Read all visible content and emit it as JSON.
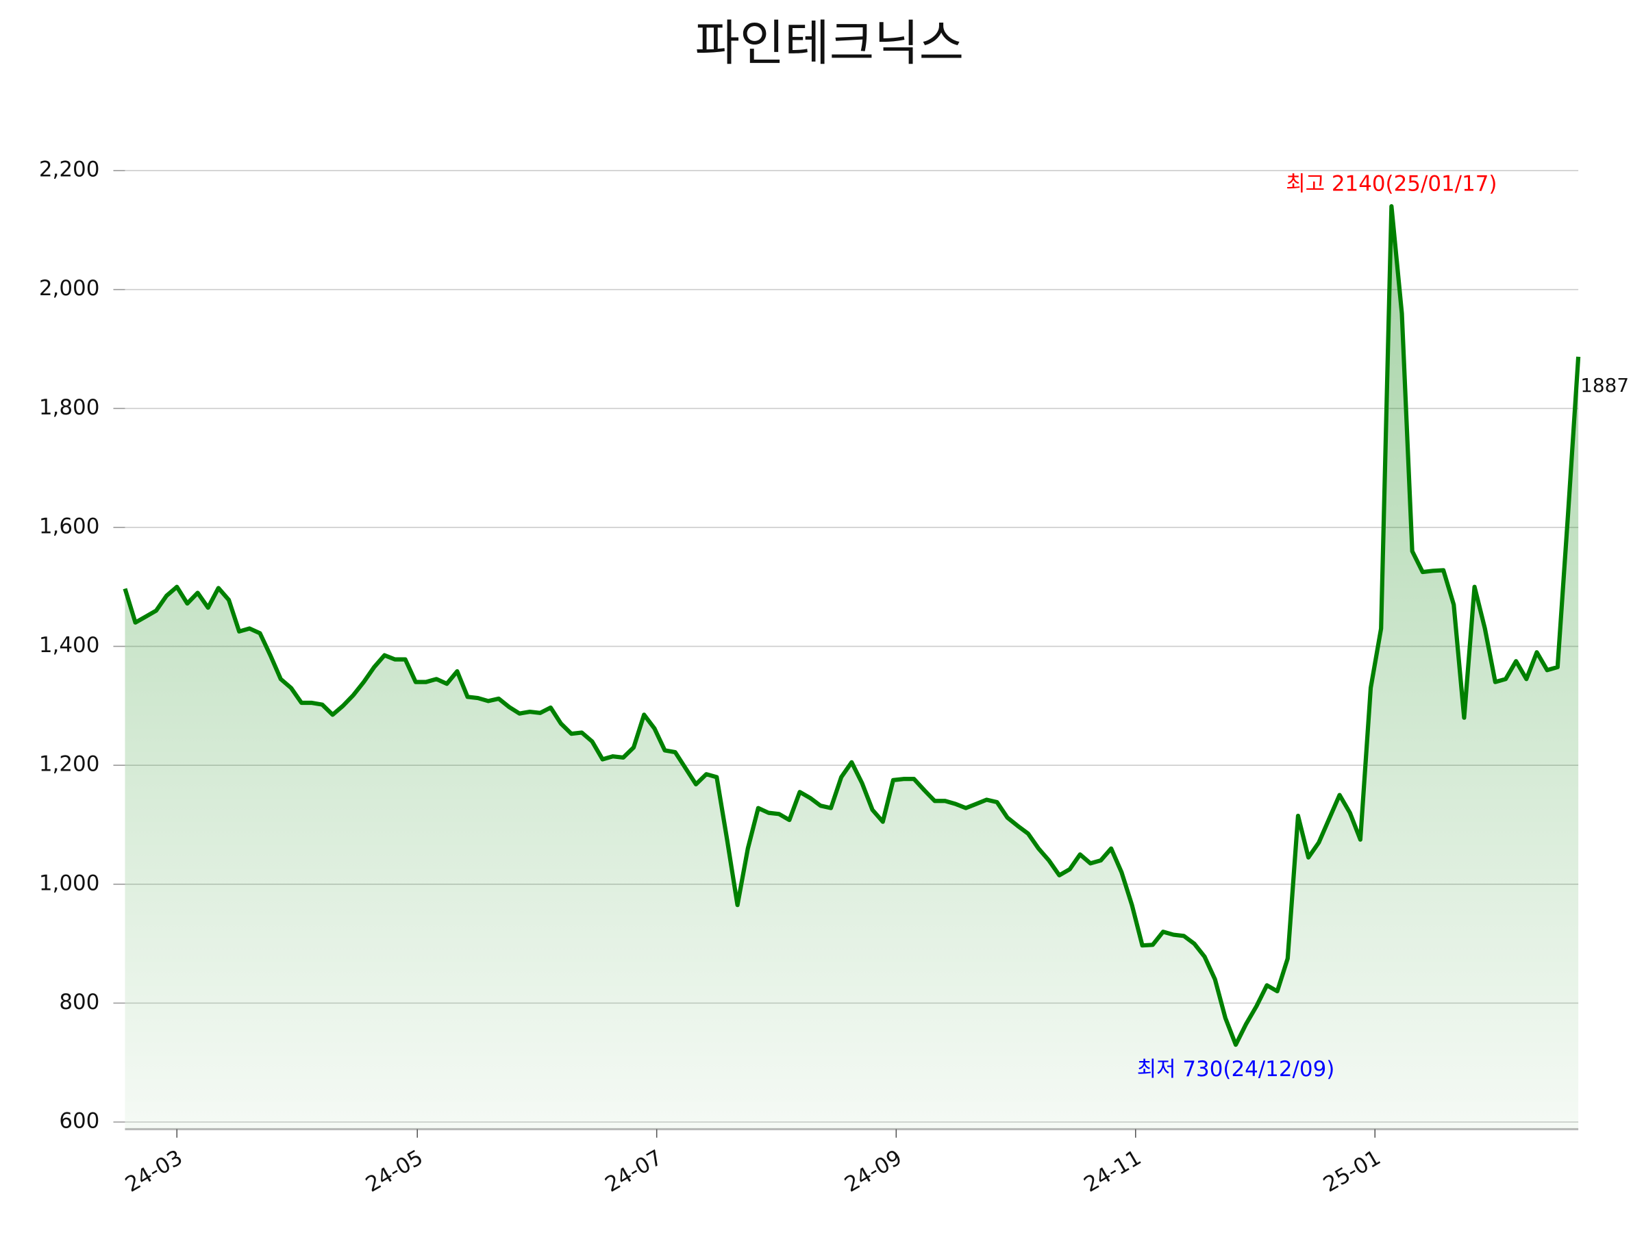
{
  "chart_data": {
    "type": "line",
    "title": "파인테크닉스",
    "color": "#008000",
    "grid": true,
    "categories": [
      null,
      null,
      null,
      null,
      null,
      null,
      null,
      null,
      null,
      null,
      null,
      null,
      null,
      null,
      null,
      null,
      null,
      null,
      null,
      null,
      null,
      null,
      null,
      null,
      null,
      null,
      null,
      null,
      null,
      null,
      null,
      null,
      null,
      null,
      null,
      null,
      null,
      null,
      null,
      null,
      null,
      null,
      null,
      null,
      null,
      null,
      null,
      null,
      null,
      null,
      null,
      null,
      null,
      null,
      null,
      null,
      null,
      null,
      null,
      null,
      null,
      null,
      null,
      null,
      null,
      null,
      null,
      null,
      null,
      null,
      null,
      null,
      null,
      null,
      null,
      null,
      null,
      null,
      null,
      null,
      null,
      null,
      null,
      null,
      null,
      null,
      null,
      null,
      null,
      null,
      null,
      null,
      null,
      null,
      null,
      null,
      null,
      null,
      null,
      null,
      null,
      null,
      null,
      null,
      null,
      null,
      null,
      null,
      null,
      null,
      null,
      null,
      null,
      null,
      null,
      null,
      null,
      null,
      null,
      null,
      null,
      null,
      null,
      null,
      null,
      null,
      null,
      null,
      null,
      null,
      null,
      null,
      null,
      null,
      null,
      null,
      null,
      null,
      null,
      null,
      null
    ],
    "values": [
      1497,
      1440,
      1450,
      1460,
      1485,
      1500,
      1472,
      1490,
      1465,
      1498,
      1478,
      1425,
      1430,
      1422,
      1385,
      1345,
      1330,
      1305,
      1305,
      1302,
      1285,
      1300,
      1318,
      1340,
      1365,
      1385,
      1378,
      1378,
      1340,
      1340,
      1345,
      1337,
      1358,
      1315,
      1313,
      1308,
      1312,
      1298,
      1287,
      1290,
      1288,
      1297,
      1270,
      1253,
      1255,
      1240,
      1210,
      1215,
      1213,
      1230,
      1285,
      1262,
      1225,
      1222,
      1195,
      1168,
      1185,
      1180,
      1075,
      965,
      1060,
      1128,
      1120,
      1118,
      1108,
      1155,
      1145,
      1132,
      1128,
      1180,
      1205,
      1170,
      1125,
      1105,
      1175,
      1177,
      1177,
      1158,
      1140,
      1140,
      1135,
      1128,
      1135,
      1142,
      1138,
      1112,
      1098,
      1085,
      1060,
      1040,
      1015,
      1025,
      1050,
      1035,
      1040,
      1060,
      1020,
      965,
      897,
      898,
      920,
      915,
      913,
      900,
      878,
      840,
      775,
      730,
      765,
      795,
      830,
      820,
      875,
      1115,
      1045,
      1070,
      1110,
      1150,
      1120,
      1075,
      1330,
      1430,
      2140,
      1960,
      1560,
      1525,
      1527,
      1528,
      1470,
      1280,
      1500,
      1430,
      1340,
      1345,
      1375,
      1345,
      1390,
      1360,
      1365,
      1620,
      1887
    ],
    "ylim": [
      588,
      2240
    ],
    "yticks": [
      600,
      800,
      {
        "value": 1000,
        "label": "1,000"
      },
      {
        "value": 1200,
        "label": "1,200"
      },
      {
        "value": 1400,
        "label": "1,400"
      },
      {
        "value": 1600,
        "label": "1,600"
      },
      {
        "value": 1800,
        "label": "1,800"
      },
      {
        "value": 2000,
        "label": "2,000"
      },
      {
        "value": 2200,
        "label": "2,200"
      }
    ],
    "xticks": [
      {
        "value": 5.0,
        "label": "24-03"
      },
      {
        "value": 28.16,
        "label": "24-05"
      },
      {
        "value": 51.22,
        "label": "24-07"
      },
      {
        "value": 74.29,
        "label": "24-09"
      },
      {
        "value": 97.35,
        "label": "24-11"
      },
      {
        "value": 120.41,
        "label": "25-01"
      }
    ],
    "annotations": [
      {
        "text": "최고 2140(25/01/17)",
        "color": "#ff0000"
      },
      {
        "text": "최저 730(24/12/09)",
        "color": "#0000ff"
      }
    ]
  }
}
